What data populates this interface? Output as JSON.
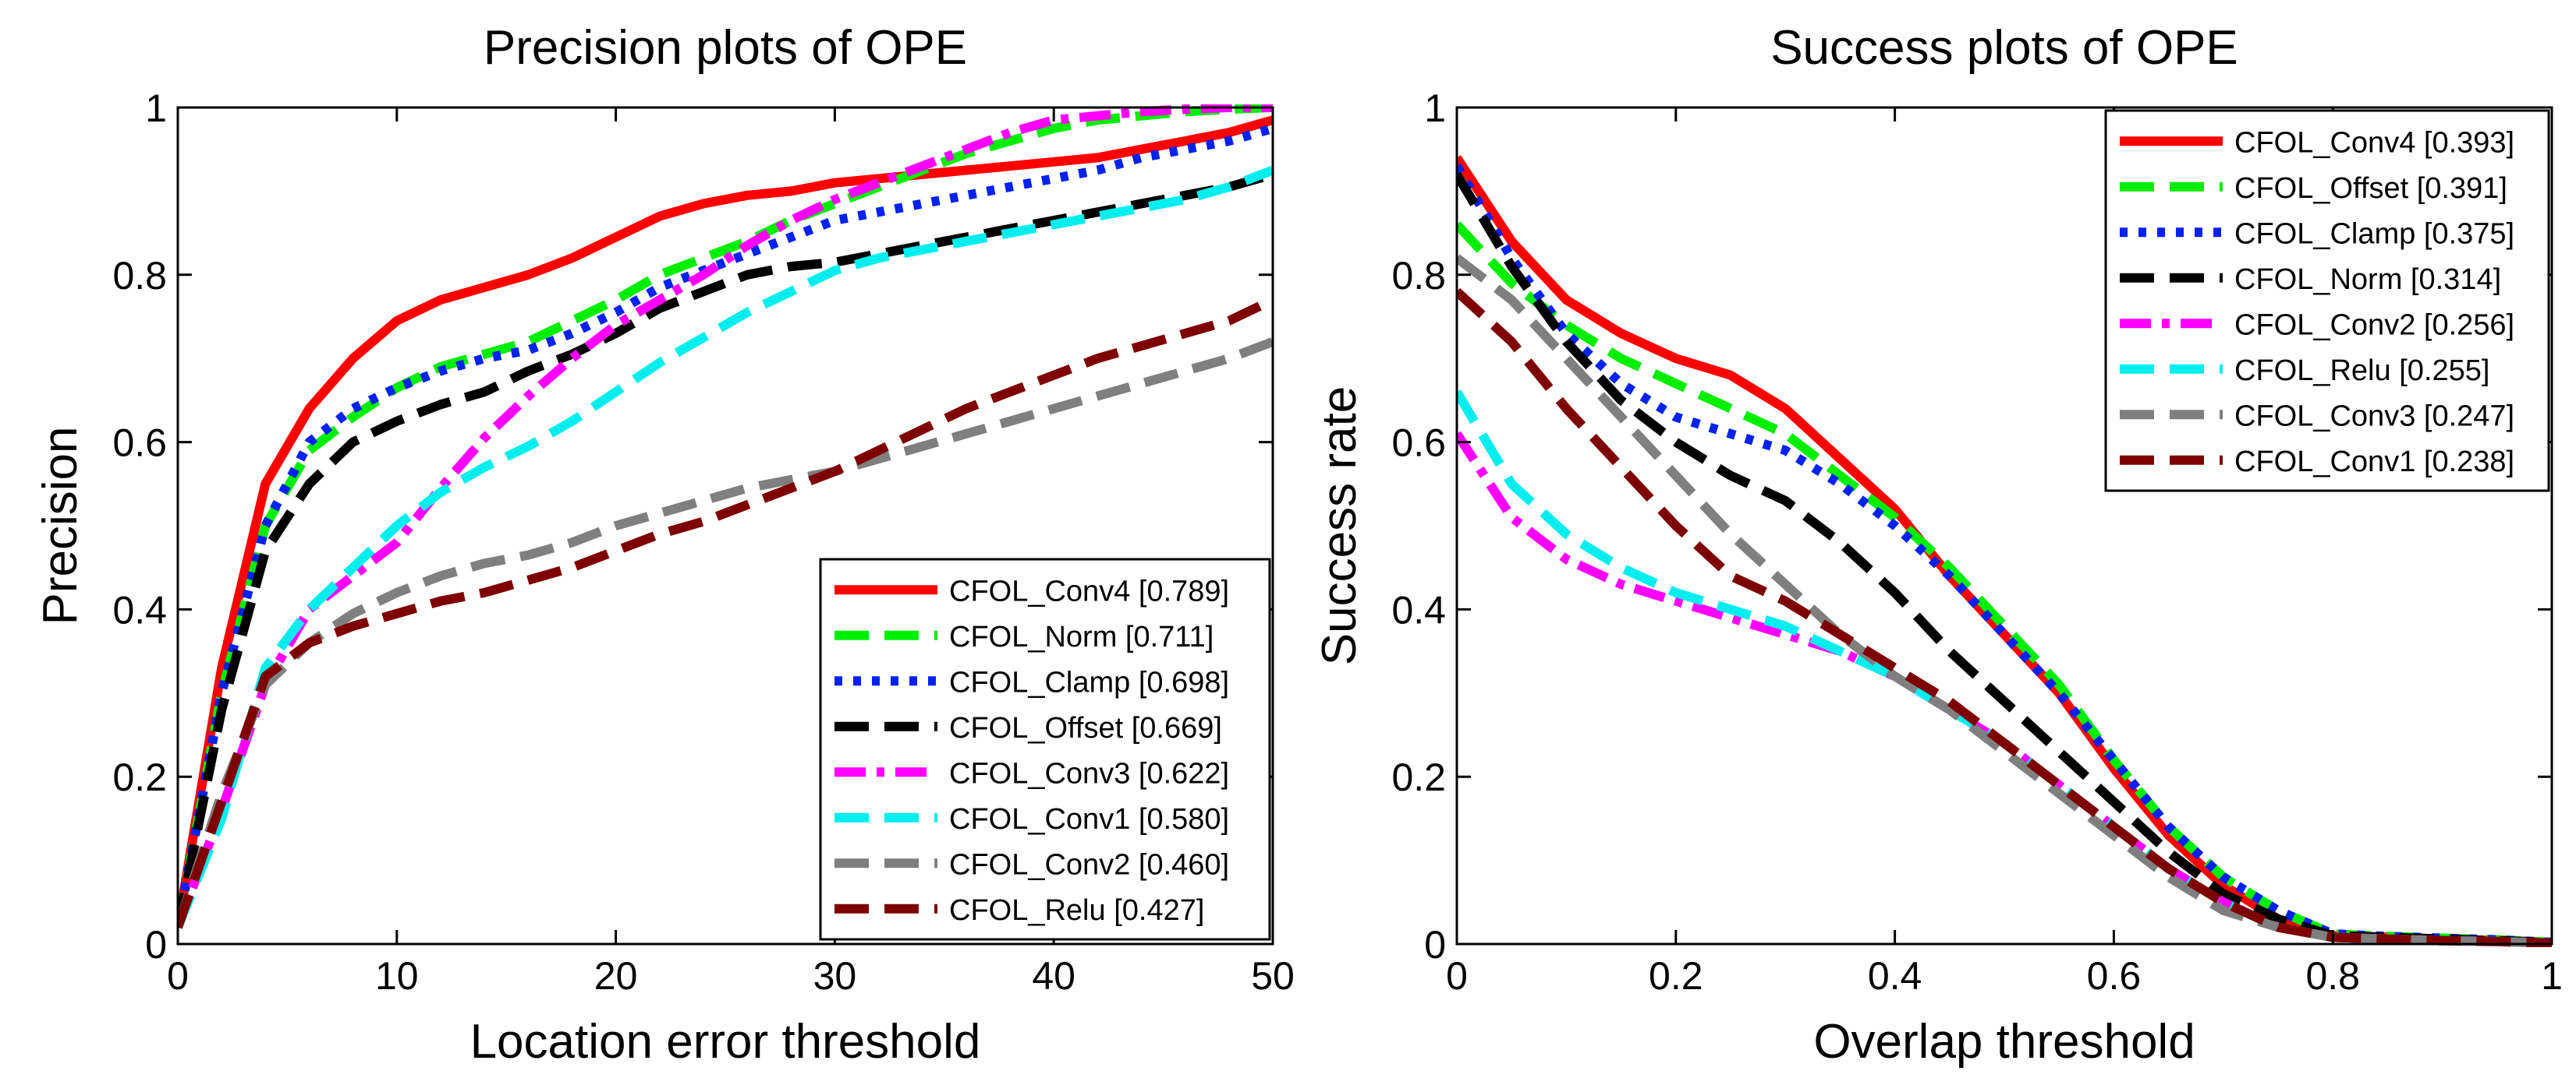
{
  "chart_data": [
    {
      "type": "line",
      "title": "Precision plots of OPE",
      "xlabel": "Location error threshold",
      "ylabel": "Precision",
      "xlim": [
        0,
        50
      ],
      "ylim": [
        0,
        1
      ],
      "xticks": [
        0,
        10,
        20,
        30,
        40,
        50
      ],
      "xtick_labels": [
        "0",
        "10",
        "20",
        "30",
        "40",
        "50"
      ],
      "yticks": [
        0,
        0.2,
        0.4,
        0.6,
        0.8,
        1
      ],
      "ytick_labels": [
        "0",
        "0.2",
        "0.4",
        "0.6",
        "0.8",
        "1"
      ],
      "legend_position": "bottom-right",
      "x": [
        0,
        2,
        4,
        6,
        8,
        10,
        12,
        14,
        16,
        18,
        20,
        22,
        24,
        26,
        28,
        30,
        32,
        34,
        36,
        38,
        40,
        42,
        44,
        46,
        48,
        50
      ],
      "series": [
        {
          "name": "CFOL_Conv4",
          "legend": "CFOL_Conv4 [0.789]",
          "color": "#ff0000",
          "style": "solid",
          "values": [
            0.02,
            0.33,
            0.55,
            0.64,
            0.7,
            0.745,
            0.77,
            0.785,
            0.8,
            0.82,
            0.845,
            0.87,
            0.885,
            0.895,
            0.9,
            0.91,
            0.915,
            0.92,
            0.925,
            0.93,
            0.935,
            0.94,
            0.95,
            0.96,
            0.97,
            0.985
          ]
        },
        {
          "name": "CFOL_Norm",
          "legend": "CFOL_Norm [0.711]",
          "color": "#00ee00",
          "style": "dash",
          "values": [
            0.02,
            0.3,
            0.5,
            0.59,
            0.63,
            0.665,
            0.69,
            0.705,
            0.72,
            0.745,
            0.77,
            0.8,
            0.82,
            0.84,
            0.865,
            0.885,
            0.905,
            0.925,
            0.945,
            0.96,
            0.975,
            0.985,
            0.99,
            0.995,
            0.998,
            1.0
          ]
        },
        {
          "name": "CFOL_Clamp",
          "legend": "CFOL_Clamp [0.698]",
          "color": "#0022ee",
          "style": "dot",
          "values": [
            0.02,
            0.3,
            0.5,
            0.6,
            0.64,
            0.665,
            0.685,
            0.7,
            0.71,
            0.73,
            0.755,
            0.785,
            0.805,
            0.825,
            0.845,
            0.865,
            0.875,
            0.885,
            0.895,
            0.905,
            0.915,
            0.925,
            0.94,
            0.95,
            0.96,
            0.975
          ]
        },
        {
          "name": "CFOL_Offset",
          "legend": "CFOL_Offset [0.669]",
          "color": "#000000",
          "style": "dash",
          "values": [
            0.02,
            0.28,
            0.47,
            0.55,
            0.6,
            0.625,
            0.645,
            0.66,
            0.685,
            0.705,
            0.73,
            0.76,
            0.78,
            0.8,
            0.81,
            0.815,
            0.825,
            0.835,
            0.845,
            0.855,
            0.865,
            0.875,
            0.885,
            0.895,
            0.905,
            0.92
          ]
        },
        {
          "name": "CFOL_Conv3",
          "legend": "CFOL_Conv3 [0.622]",
          "color": "#ff00ff",
          "style": "dashdot",
          "values": [
            0.02,
            0.16,
            0.31,
            0.4,
            0.44,
            0.48,
            0.545,
            0.605,
            0.655,
            0.7,
            0.74,
            0.77,
            0.8,
            0.835,
            0.865,
            0.89,
            0.91,
            0.93,
            0.95,
            0.97,
            0.985,
            0.99,
            0.995,
            0.998,
            1.0,
            1.0
          ]
        },
        {
          "name": "CFOL_Conv1",
          "legend": "CFOL_Conv1 [0.580]",
          "color": "#00eeee",
          "style": "dash",
          "values": [
            0.02,
            0.15,
            0.33,
            0.4,
            0.45,
            0.5,
            0.54,
            0.57,
            0.595,
            0.625,
            0.66,
            0.695,
            0.725,
            0.755,
            0.78,
            0.805,
            0.82,
            0.83,
            0.84,
            0.85,
            0.86,
            0.87,
            0.88,
            0.89,
            0.905,
            0.925
          ]
        },
        {
          "name": "CFOL_Conv2",
          "legend": "CFOL_Conv2 [0.460]",
          "color": "#7f7f7f",
          "style": "dash",
          "values": [
            0.02,
            0.18,
            0.31,
            0.36,
            0.395,
            0.42,
            0.44,
            0.455,
            0.465,
            0.48,
            0.5,
            0.515,
            0.53,
            0.545,
            0.555,
            0.565,
            0.58,
            0.595,
            0.61,
            0.625,
            0.64,
            0.655,
            0.67,
            0.685,
            0.7,
            0.72
          ]
        },
        {
          "name": "CFOL_Relu",
          "legend": "CFOL_Relu [0.427]",
          "color": "#7f0000",
          "style": "dash",
          "values": [
            0.02,
            0.17,
            0.32,
            0.36,
            0.38,
            0.395,
            0.41,
            0.42,
            0.435,
            0.45,
            0.47,
            0.49,
            0.505,
            0.525,
            0.545,
            0.565,
            0.59,
            0.615,
            0.64,
            0.66,
            0.68,
            0.7,
            0.715,
            0.73,
            0.745,
            0.77
          ]
        }
      ]
    },
    {
      "type": "line",
      "title": "Success plots of OPE",
      "xlabel": "Overlap threshold",
      "ylabel": "Success rate",
      "xlim": [
        0,
        1
      ],
      "ylim": [
        0,
        1
      ],
      "xticks": [
        0,
        0.2,
        0.4,
        0.6,
        0.8,
        1
      ],
      "xtick_labels": [
        "0",
        "0.2",
        "0.4",
        "0.6",
        "0.8",
        "1"
      ],
      "yticks": [
        0,
        0.2,
        0.4,
        0.6,
        0.8,
        1
      ],
      "ytick_labels": [
        "0",
        "0.2",
        "0.4",
        "0.6",
        "0.8",
        "1"
      ],
      "legend_position": "top-right",
      "x": [
        0,
        0.05,
        0.1,
        0.15,
        0.2,
        0.25,
        0.3,
        0.35,
        0.4,
        0.45,
        0.5,
        0.55,
        0.6,
        0.65,
        0.7,
        0.75,
        0.8,
        0.85,
        0.9,
        0.95,
        1.0
      ],
      "series": [
        {
          "name": "CFOL_Conv4",
          "legend": "CFOL_Conv4 [0.393]",
          "color": "#ff0000",
          "style": "solid",
          "values": [
            0.94,
            0.84,
            0.77,
            0.73,
            0.7,
            0.68,
            0.64,
            0.58,
            0.52,
            0.44,
            0.37,
            0.3,
            0.21,
            0.13,
            0.07,
            0.03,
            0.01,
            0.008,
            0.006,
            0.004,
            0.002
          ]
        },
        {
          "name": "CFOL_Offset",
          "legend": "CFOL_Offset [0.391]",
          "color": "#00ee00",
          "style": "dash",
          "values": [
            0.86,
            0.79,
            0.74,
            0.7,
            0.67,
            0.64,
            0.61,
            0.56,
            0.51,
            0.45,
            0.38,
            0.31,
            0.22,
            0.14,
            0.08,
            0.04,
            0.012,
            0.009,
            0.007,
            0.005,
            0.002
          ]
        },
        {
          "name": "CFOL_Clamp",
          "legend": "CFOL_Clamp [0.375]",
          "color": "#0022ee",
          "style": "dot",
          "values": [
            0.93,
            0.82,
            0.73,
            0.67,
            0.63,
            0.61,
            0.59,
            0.55,
            0.5,
            0.44,
            0.37,
            0.3,
            0.22,
            0.14,
            0.08,
            0.04,
            0.012,
            0.009,
            0.007,
            0.005,
            0.002
          ]
        },
        {
          "name": "CFOL_Norm",
          "legend": "CFOL_Norm [0.314]",
          "color": "#000000",
          "style": "dash",
          "values": [
            0.92,
            0.81,
            0.72,
            0.65,
            0.6,
            0.56,
            0.53,
            0.48,
            0.42,
            0.35,
            0.29,
            0.23,
            0.17,
            0.11,
            0.06,
            0.03,
            0.01,
            0.008,
            0.006,
            0.004,
            0.002
          ]
        },
        {
          "name": "CFOL_Conv2",
          "legend": "CFOL_Conv2 [0.256]",
          "color": "#ff00ff",
          "style": "dashdot",
          "values": [
            0.61,
            0.51,
            0.46,
            0.43,
            0.41,
            0.39,
            0.37,
            0.35,
            0.32,
            0.28,
            0.24,
            0.19,
            0.14,
            0.09,
            0.05,
            0.02,
            0.008,
            0.006,
            0.004,
            0.003,
            0.001
          ]
        },
        {
          "name": "CFOL_Relu",
          "legend": "CFOL_Relu [0.255]",
          "color": "#00eeee",
          "style": "dash",
          "values": [
            0.66,
            0.55,
            0.49,
            0.45,
            0.42,
            0.4,
            0.38,
            0.35,
            0.32,
            0.28,
            0.24,
            0.19,
            0.14,
            0.09,
            0.05,
            0.02,
            0.008,
            0.006,
            0.004,
            0.003,
            0.001
          ]
        },
        {
          "name": "CFOL_Conv3",
          "legend": "CFOL_Conv3 [0.247]",
          "color": "#7f7f7f",
          "style": "dash",
          "values": [
            0.82,
            0.77,
            0.7,
            0.63,
            0.56,
            0.49,
            0.43,
            0.37,
            0.32,
            0.28,
            0.23,
            0.18,
            0.13,
            0.08,
            0.04,
            0.02,
            0.008,
            0.006,
            0.004,
            0.003,
            0.001
          ]
        },
        {
          "name": "CFOL_Conv1",
          "legend": "CFOL_Conv1 [0.238]",
          "color": "#7f0000",
          "style": "dash",
          "values": [
            0.78,
            0.72,
            0.64,
            0.57,
            0.5,
            0.44,
            0.41,
            0.37,
            0.33,
            0.29,
            0.24,
            0.19,
            0.14,
            0.09,
            0.05,
            0.02,
            0.008,
            0.006,
            0.004,
            0.003,
            0.001
          ]
        }
      ]
    }
  ]
}
